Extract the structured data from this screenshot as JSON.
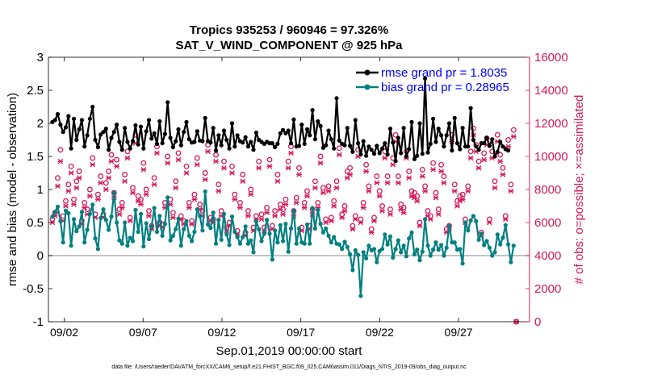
{
  "chart_data": {
    "type": "line",
    "title_line1": "Tropics 935253 / 960946 = 97.326%",
    "title_line2": "SAT_V_WIND_COMPONENT @ 925 hPa",
    "xlabel": "Sep.01,2019 00:00:00 start",
    "ylabel_left": "rmse and bias (model - observation)",
    "ylabel_right": "# of obs: o=possible; ×=assimilated",
    "footnote": "data file: /Users/raeder/DAI/ATM_forcXX/CAM6_setup/f.e21.FHIST_BGC.f09_025.CAM6assim.011/Diags_NTrS_2019-09/obs_diag_output.nc",
    "xlim": [
      0,
      30.5
    ],
    "ylim_left": [
      -1,
      3
    ],
    "ylim_right": [
      0,
      16000
    ],
    "xticks": [
      {
        "value": 1,
        "label": "09/02"
      },
      {
        "value": 6,
        "label": "09/07"
      },
      {
        "value": 11,
        "label": "09/12"
      },
      {
        "value": 16,
        "label": "09/17"
      },
      {
        "value": 21,
        "label": "09/22"
      },
      {
        "value": 26,
        "label": "09/27"
      }
    ],
    "yticks_left": [
      "3",
      "2.5",
      "2",
      "1.5",
      "1",
      "0.5",
      "0",
      "-0.5",
      "-1"
    ],
    "yticks_right": [
      "16000",
      "14000",
      "12000",
      "10000",
      "8000",
      "6000",
      "4000",
      "2000",
      "0"
    ],
    "legend": [
      {
        "label": "rmse grand pr = 1.8035",
        "color": "#000000"
      },
      {
        "label": "bias grand pr = 0.28965",
        "color": "#008080"
      }
    ],
    "colors": {
      "rmse": "#000000",
      "bias": "#008080",
      "obs": "#d6185b",
      "zero_line": "#b0b0b0",
      "legend_text": "#0000ff"
    },
    "series": [
      {
        "name": "rmse",
        "axis": "left",
        "values": [
          2.02,
          2.05,
          2.14,
          1.98,
          1.87,
          1.94,
          2.11,
          1.62,
          2.07,
          1.75,
          1.91,
          2.05,
          1.65,
          1.82,
          2.07,
          2.25,
          1.75,
          1.64,
          1.83,
          1.87,
          1.92,
          1.6,
          1.78,
          1.87,
          1.98,
          1.72,
          1.6,
          1.93,
          1.72,
          1.62,
          1.73,
          1.97,
          1.68,
          1.95,
          1.62,
          1.88,
          2.05,
          1.77,
          1.85,
          1.69,
          2.03,
          1.7,
          1.84,
          2.32,
          1.78,
          1.64,
          1.73,
          1.91,
          1.67,
          1.87,
          2.02,
          1.76,
          1.71,
          1.72,
          1.88,
          1.74,
          1.73,
          2.08,
          1.73,
          1.71,
          1.93,
          1.59,
          1.82,
          1.67,
          1.89,
          1.75,
          1.62,
          2.0,
          1.65,
          1.82,
          1.73,
          1.71,
          1.79,
          1.65,
          1.72,
          1.6,
          1.86,
          1.75,
          1.72,
          1.69,
          1.72,
          1.7,
          1.7,
          1.64,
          1.69,
          1.85,
          1.9,
          1.85,
          1.89,
          1.7,
          2.06,
          1.65,
          1.66,
          1.98,
          1.69,
          1.91,
          1.82,
          2.2,
          1.76,
          2.03,
          1.96,
          1.63,
          1.67,
          1.89,
          1.76,
          1.62,
          2.38,
          1.74,
          1.69,
          1.67,
          1.93,
          1.66,
          1.57,
          2.05,
          1.7,
          1.53,
          1.73,
          1.51,
          1.65,
          1.6,
          1.54,
          1.66,
          1.55,
          1.62,
          1.7,
          1.53,
          1.92,
          1.71,
          1.43,
          1.78,
          1.55,
          1.93,
          1.5,
          1.61,
          2.02,
          1.46,
          1.51,
          2.0,
          1.54,
          2.68,
          1.56,
          1.69,
          2.07,
          1.72,
          1.92,
          1.82,
          1.65,
          1.82,
          2.0,
          1.59,
          2.08,
          1.7,
          1.61,
          1.93,
          1.65,
          1.65,
          2.23,
          1.75,
          1.65,
          1.6,
          1.7,
          1.7,
          1.78,
          1.66,
          1.76,
          1.5,
          1.57,
          1.72,
          1.65,
          1.61,
          1.59
        ]
      },
      {
        "name": "bias",
        "axis": "left",
        "values": [
          0.59,
          0.66,
          0.74,
          0.52,
          0.2,
          0.68,
          0.64,
          0.15,
          0.55,
          0.37,
          0.44,
          0.66,
          0.2,
          0.39,
          0.63,
          0.77,
          0.26,
          0.1,
          0.57,
          0.7,
          0.54,
          0.39,
          0.59,
          0.95,
          0.5,
          0.23,
          0.18,
          0.5,
          0.15,
          0.27,
          0.22,
          0.69,
          0.36,
          0.63,
          0.14,
          0.49,
          0.25,
          0.44,
          0.72,
          0.36,
          0.6,
          0.3,
          0.48,
          0.88,
          0.23,
          0.3,
          0.4,
          0.56,
          0.15,
          0.4,
          0.52,
          0.3,
          0.22,
          0.36,
          0.7,
          0.6,
          0.38,
          0.97,
          0.47,
          0.42,
          0.65,
          0.18,
          0.54,
          0.24,
          0.63,
          0.32,
          0.16,
          0.59,
          0.36,
          0.28,
          0.18,
          0.28,
          0.44,
          0.18,
          0.23,
          0.05,
          0.52,
          0.4,
          0.22,
          0.33,
          0.54,
          0.33,
          -0.06,
          0.38,
          0.2,
          0.46,
          0.22,
          0.48,
          0.06,
          0.41,
          0.68,
          0.18,
          0.41,
          0.2,
          0.18,
          0.47,
          0.18,
          0.72,
          0.41,
          0.69,
          0.48,
          0.35,
          0.41,
          0.3,
          0.2,
          0.28,
          0.18,
          0.17,
          0.1,
          0.21,
          0.13,
          0.02,
          -0.22,
          0.08,
          0.01,
          -0.61,
          0.05,
          -0.04,
          0.15,
          0.08,
          0.1,
          -0.1,
          0.07,
          0.1,
          0.32,
          0.17,
          0.29,
          -0.03,
          0.1,
          0.23,
          0.05,
          0.15,
          -0.01,
          0.26,
          0.35,
          0.02,
          0.09,
          -0.07,
          0.06,
          0.55,
          0.15,
          0.0,
          0.09,
          0.2,
          0.09,
          0.16,
          0.0,
          0.12,
          0.45,
          0.2,
          0.2,
          0.09,
          0.1,
          -0.12,
          0.5,
          0.38,
          0.53,
          0.6,
          0.52,
          0.24,
          0.33,
          0.16,
          0.22,
          0.12,
          0.0,
          0.05,
          0.32,
          0.17,
          0.27,
          0.46,
          0.17,
          -0.1,
          0.15
        ]
      },
      {
        "name": "obs_possible",
        "axis": "right",
        "values": [
          6200,
          6600,
          8700,
          10400,
          6400,
          7300,
          8300,
          9400,
          7400,
          8500,
          9100,
          6100,
          7200,
          6800,
          8000,
          9900,
          6500,
          7700,
          8800,
          6500,
          8400,
          9100,
          10100,
          7800,
          9800,
          6800,
          7200,
          8900,
          10300,
          6300,
          8100,
          11300,
          7600,
          7400,
          9600,
          8000,
          6700,
          5800,
          8700,
          10600,
          6000,
          5900,
          7200,
          10000,
          7400,
          6600,
          8500,
          10200,
          6400,
          6100,
          9400,
          7200,
          6100,
          7700,
          9900,
          7100,
          6700,
          9000,
          10700,
          6300,
          6200,
          10100,
          8300,
          6700,
          9700,
          5700,
          6000,
          9400,
          7700,
          5500,
          7200,
          8900,
          5400,
          6700,
          8000,
          5700,
          6400,
          9700,
          6500,
          5700,
          6900,
          9800,
          5800,
          6700,
          8900,
          7100,
          6800,
          7400,
          9700,
          10600,
          6700,
          7500,
          9300,
          5700,
          7200,
          7900,
          5800,
          6800,
          8500,
          7200,
          10000,
          8100,
          6200,
          8200,
          6300,
          7300,
          8500,
          10500,
          6500,
          7000,
          9100,
          9300,
          5800,
          6400,
          10400,
          6200,
          7200,
          9500,
          8200,
          5600,
          6300,
          8800,
          7900,
          7000,
          10300,
          8800,
          6800,
          9900,
          11300,
          8800,
          7100,
          6900,
          10300,
          9100,
          7900,
          7800,
          7600,
          6000,
          9200,
          8200,
          6700,
          6400,
          9600,
          7800,
          6800,
          9500,
          8800,
          5600,
          5800,
          11300,
          8300,
          7300,
          7600,
          7700,
          6200,
          8200,
          10300,
          11700,
          10700,
          9700,
          5400,
          10200,
          11100,
          6200,
          10300,
          8500,
          11300,
          10100,
          9300,
          6400,
          11000,
          8300,
          11600,
          0
        ]
      },
      {
        "name": "obs_assimilated",
        "axis": "right",
        "values": [
          6000,
          6400,
          8200,
          9700,
          6100,
          7000,
          7900,
          9000,
          7100,
          8100,
          8700,
          5900,
          6900,
          6500,
          7600,
          9500,
          6300,
          7400,
          8400,
          6300,
          8000,
          8700,
          9700,
          7500,
          9400,
          6500,
          6900,
          8500,
          9900,
          6100,
          7800,
          10800,
          7300,
          7100,
          9200,
          7700,
          6400,
          5600,
          8300,
          10200,
          5800,
          5700,
          6900,
          9600,
          7100,
          6300,
          8100,
          9800,
          6200,
          5900,
          9000,
          6900,
          5900,
          7400,
          9500,
          6800,
          6400,
          8600,
          10300,
          6100,
          6000,
          9700,
          7900,
          6400,
          9300,
          5500,
          5800,
          9000,
          7400,
          5300,
          6900,
          8500,
          5200,
          6400,
          7700,
          5500,
          6200,
          9300,
          6200,
          5500,
          6600,
          9400,
          5600,
          6400,
          8500,
          6800,
          6500,
          7100,
          9300,
          10200,
          6400,
          7200,
          8900,
          5500,
          6900,
          7600,
          5600,
          6500,
          8100,
          6900,
          9600,
          7800,
          6000,
          7900,
          6100,
          7000,
          8100,
          10100,
          6300,
          6700,
          8700,
          8900,
          5600,
          6200,
          10000,
          6000,
          6900,
          9100,
          7900,
          5400,
          6100,
          8400,
          7600,
          6700,
          9900,
          8400,
          6500,
          9500,
          10900,
          8400,
          6800,
          6600,
          9900,
          8700,
          7600,
          7500,
          7300,
          5800,
          8800,
          7900,
          6400,
          6200,
          9200,
          7500,
          6500,
          9100,
          8400,
          5400,
          5600,
          10900,
          7900,
          7000,
          7300,
          7400,
          6000,
          7900,
          9900,
          11300,
          10300,
          9300,
          5200,
          9800,
          10700,
          6000,
          9900,
          8100,
          10900,
          9700,
          8900,
          6200,
          10600,
          7900,
          11200,
          0
        ]
      }
    ]
  }
}
